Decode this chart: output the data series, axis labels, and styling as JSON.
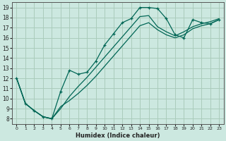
{
  "title": "",
  "xlabel": "Humidex (Indice chaleur)",
  "ylabel": "",
  "bg_color": "#cce8e0",
  "grid_color": "#aaccbb",
  "line_color": "#006655",
  "xlim": [
    -0.5,
    23.5
  ],
  "ylim": [
    7.5,
    19.5
  ],
  "xticks": [
    0,
    1,
    2,
    3,
    4,
    5,
    6,
    7,
    8,
    9,
    10,
    11,
    12,
    13,
    14,
    15,
    16,
    17,
    18,
    19,
    20,
    21,
    22,
    23
  ],
  "yticks": [
    8,
    9,
    10,
    11,
    12,
    13,
    14,
    15,
    16,
    17,
    18,
    19
  ],
  "line1_x": [
    0,
    1,
    2,
    3,
    4,
    5,
    6,
    7,
    8,
    9,
    10,
    11,
    12,
    13,
    14,
    15,
    16,
    17,
    18,
    19,
    20,
    21,
    22,
    23
  ],
  "line1_y": [
    12,
    9.5,
    8.8,
    8.2,
    8.0,
    10.7,
    12.8,
    12.4,
    12.6,
    13.7,
    15.3,
    16.4,
    17.5,
    17.9,
    19.0,
    19.0,
    18.9,
    17.9,
    16.3,
    16.0,
    17.8,
    17.5,
    17.4,
    17.8
  ],
  "line2_x": [
    0,
    1,
    2,
    3,
    4,
    5,
    6,
    7,
    8,
    9,
    10,
    11,
    12,
    13,
    14,
    15,
    16,
    17,
    18,
    19,
    20,
    21,
    22,
    23
  ],
  "line2_y": [
    12,
    9.5,
    8.8,
    8.2,
    8.0,
    9.0,
    10.2,
    11.2,
    12.1,
    13.1,
    14.1,
    15.1,
    16.1,
    17.1,
    18.1,
    18.2,
    17.1,
    16.6,
    16.2,
    16.6,
    17.1,
    17.4,
    17.6,
    17.9
  ],
  "line3_x": [
    0,
    1,
    2,
    3,
    4,
    5,
    6,
    7,
    8,
    9,
    10,
    11,
    12,
    13,
    14,
    15,
    16,
    17,
    18,
    19,
    20,
    21,
    22,
    23
  ],
  "line3_y": [
    12,
    9.5,
    8.8,
    8.2,
    8.0,
    9.2,
    9.8,
    10.5,
    11.3,
    12.2,
    13.2,
    14.2,
    15.2,
    16.2,
    17.2,
    17.5,
    16.8,
    16.3,
    16.0,
    16.3,
    16.9,
    17.2,
    17.4,
    17.8
  ]
}
